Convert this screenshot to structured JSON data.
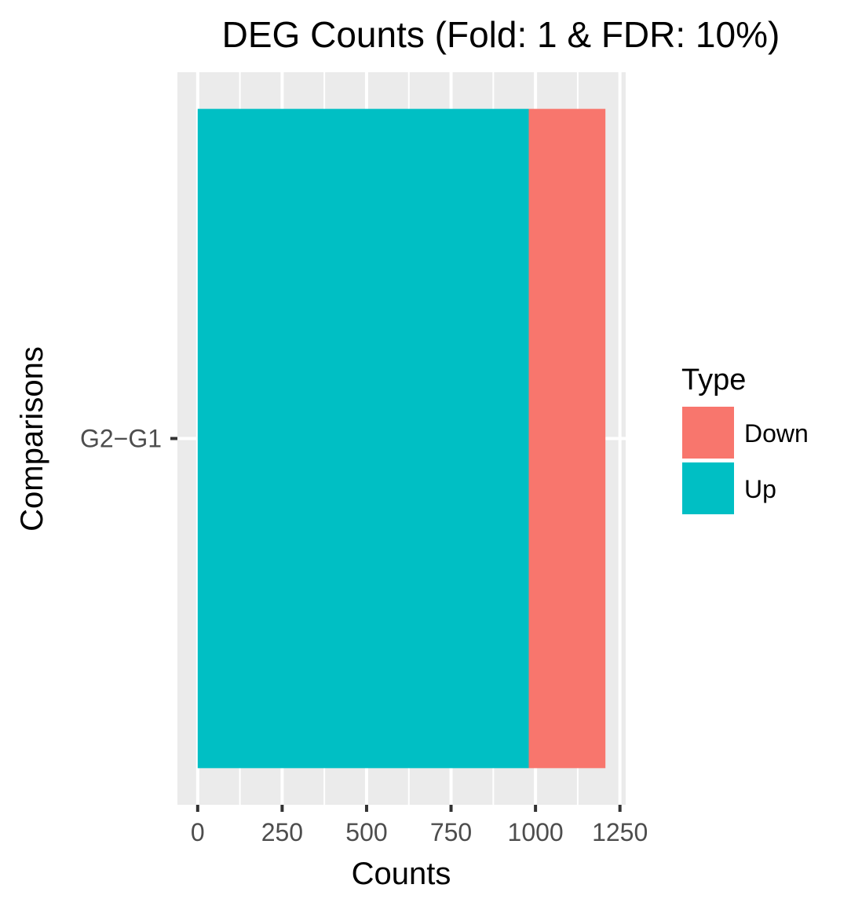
{
  "chart_data": {
    "type": "bar",
    "orientation": "horizontal",
    "stacked": true,
    "title": "DEG Counts (Fold: 1 & FDR: 10%)",
    "xlabel": "Counts",
    "ylabel": "Comparisons",
    "categories": [
      "G2−G1"
    ],
    "series": [
      {
        "name": "Up",
        "values": [
          980
        ],
        "color": "#00BFC4"
      },
      {
        "name": "Down",
        "values": [
          227
        ],
        "color": "#F8766D"
      }
    ],
    "xticks": [
      "0",
      "250",
      "500",
      "750",
      "1000",
      "1250"
    ],
    "xlim": [
      -60,
      1267
    ],
    "grid": true,
    "panel_background": "#EBEBEB",
    "legend": {
      "title": "Type",
      "position": "right",
      "entries": [
        {
          "label": "Down",
          "color": "#F8766D"
        },
        {
          "label": "Up",
          "color": "#00BFC4"
        }
      ]
    }
  }
}
